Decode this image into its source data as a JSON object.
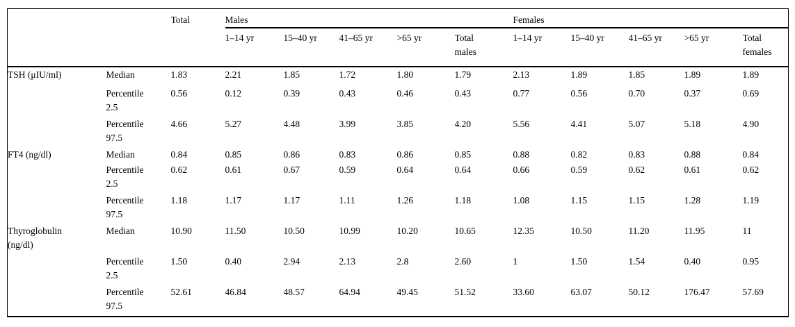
{
  "table": {
    "group_headers": {
      "total": "Total",
      "males": "Males",
      "females": "Females"
    },
    "sub_headers": [
      "1–14 yr",
      "15–40 yr",
      "41–65 yr",
      ">65 yr",
      "Total males",
      "1–14 yr",
      "15–40 yr",
      "41–65 yr",
      ">65 yr",
      "Total females"
    ],
    "rows": [
      {
        "analyte": "TSH (μIU/ml)",
        "stat": "Median",
        "values": [
          "1.83",
          "2.21",
          "1.85",
          "1.72",
          "1.80",
          "1.79",
          "2.13",
          "1.89",
          "1.85",
          "1.89",
          "1.89"
        ]
      },
      {
        "analyte": "",
        "stat": "Percentile 2.5",
        "values": [
          "0.56",
          "0.12",
          "0.39",
          "0.43",
          "0.46",
          "0.43",
          "0.77",
          "0.56",
          "0.70",
          "0.37",
          "0.69"
        ]
      },
      {
        "analyte": "",
        "stat": "Percentile 97.5",
        "values": [
          "4.66",
          "5.27",
          "4.48",
          "3.99",
          "3.85",
          "4.20",
          "5.56",
          "4.41",
          "5.07",
          "5.18",
          "4.90"
        ]
      },
      {
        "analyte": "FT4 (ng/dl)",
        "stat": "Median",
        "values": [
          "0.84",
          "0.85",
          "0.86",
          "0.83",
          "0.86",
          "0.85",
          "0.88",
          "0.82",
          "0.83",
          "0.88",
          "0.84"
        ]
      },
      {
        "analyte": "",
        "stat": "Percentile 2.5",
        "values": [
          "0.62",
          "0.61",
          "0.67",
          "0.59",
          "0.64",
          "0.64",
          "0.66",
          "0.59",
          "0.62",
          "0.61",
          "0.62"
        ]
      },
      {
        "analyte": "",
        "stat": "Percentile 97.5",
        "values": [
          "1.18",
          "1.17",
          "1.17",
          "1.11",
          "1.26",
          "1.18",
          "1.08",
          "1.15",
          "1.15",
          "1.28",
          "1.19"
        ]
      },
      {
        "analyte": "Thyroglobulin (ng/dl)",
        "stat": "Median",
        "values": [
          "10.90",
          "11.50",
          "10.50",
          "10.99",
          "10.20",
          "10.65",
          "12.35",
          "10.50",
          "11.20",
          "11.95",
          "11"
        ]
      },
      {
        "analyte": "",
        "stat": "Percentile 2.5",
        "values": [
          "1.50",
          "0.40",
          "2.94",
          "2.13",
          "2.8",
          "2.60",
          "1",
          "1.50",
          "1.54",
          "0.40",
          "0.95"
        ]
      },
      {
        "analyte": "",
        "stat": "Percentile 97.5",
        "values": [
          "52.61",
          "46.84",
          "48.57",
          "64.94",
          "49.45",
          "51.52",
          "33.60",
          "63.07",
          "50.12",
          "176.47",
          "57.69"
        ]
      }
    ]
  }
}
